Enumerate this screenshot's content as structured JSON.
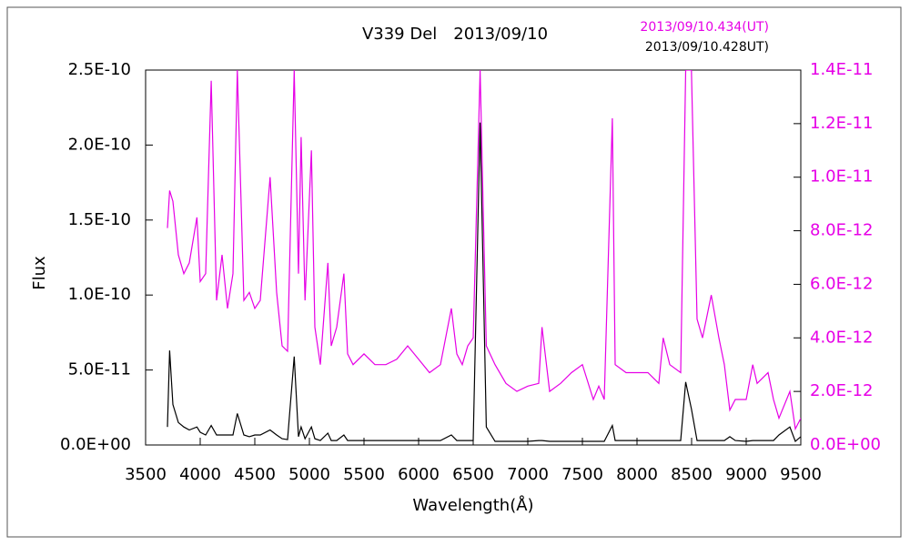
{
  "chart_data": {
    "type": "line",
    "title": "V339 Del　2013/09/10",
    "x_label": "Wavelength(Å)",
    "y_label": "Flux",
    "x": [
      3700,
      3720,
      3750,
      3800,
      3850,
      3900,
      3970,
      4000,
      4050,
      4101,
      4150,
      4200,
      4250,
      4300,
      4340,
      4400,
      4450,
      4500,
      4550,
      4640,
      4700,
      4750,
      4800,
      4861,
      4900,
      4924,
      4960,
      5018,
      5050,
      5100,
      5169,
      5200,
      5250,
      5316,
      5350,
      5400,
      5500,
      5600,
      5700,
      5800,
      5900,
      6000,
      6100,
      6200,
      6300,
      6350,
      6400,
      6450,
      6500,
      6563,
      6620,
      6700,
      6800,
      6900,
      7000,
      7100,
      7130,
      7200,
      7300,
      7400,
      7500,
      7600,
      7650,
      7700,
      7774,
      7800,
      7900,
      8000,
      8100,
      8200,
      8240,
      8300,
      8400,
      8446,
      8498,
      8550,
      8600,
      8680,
      8750,
      8800,
      8850,
      8900,
      9000,
      9060,
      9100,
      9200,
      9250,
      9300,
      9400,
      9450,
      9500
    ],
    "series": [
      {
        "name": "2013/09/10.434(UT)",
        "color": "#e600e6",
        "axis": "y2",
        "values": [
          8.1e-12,
          9.5e-12,
          9.1e-12,
          7.1e-12,
          6.4e-12,
          6.8e-12,
          8.5e-12,
          6.1e-12,
          6.4e-12,
          1.36e-11,
          5.4e-12,
          7.1e-12,
          5.1e-12,
          6.4e-12,
          1.4e-11,
          5.4e-12,
          5.7e-12,
          5.1e-12,
          5.4e-12,
          1e-11,
          5.7e-12,
          3.7e-12,
          3.5e-12,
          1.4e-11,
          6.4e-12,
          1.15e-11,
          5.4e-12,
          1.1e-11,
          4.4e-12,
          3e-12,
          6.8e-12,
          3.7e-12,
          4.4e-12,
          6.4e-12,
          3.4e-12,
          3e-12,
          3.4e-12,
          3e-12,
          3e-12,
          3.2e-12,
          3.7e-12,
          3.2e-12,
          2.7e-12,
          3e-12,
          5.1e-12,
          3.4e-12,
          3e-12,
          3.7e-12,
          4e-12,
          1.4e-11,
          3.7e-12,
          3e-12,
          2.3e-12,
          2e-12,
          2.2e-12,
          2.3e-12,
          4.4e-12,
          2e-12,
          2.3e-12,
          2.7e-12,
          3e-12,
          1.7e-12,
          2.2e-12,
          1.7e-12,
          1.22e-11,
          3e-12,
          2.7e-12,
          2.7e-12,
          2.7e-12,
          2.3e-12,
          4e-12,
          3e-12,
          2.7e-12,
          1.4e-11,
          1.4e-11,
          4.7e-12,
          4e-12,
          5.6e-12,
          4e-12,
          3e-12,
          1.3e-12,
          1.7e-12,
          1.7e-12,
          3e-12,
          2.3e-12,
          2.7e-12,
          1.7e-12,
          1e-12,
          2e-12,
          6e-13,
          1e-12
        ]
      },
      {
        "name": "2013/09/10.428UT)",
        "color": "#000000",
        "values": [
          1.2e-11,
          6.3e-11,
          2.7e-11,
          1.5e-11,
          1.2e-11,
          1e-11,
          1.2e-11,
          8.5e-12,
          6.7e-12,
          1.3e-11,
          6.7e-12,
          6.7e-12,
          6.7e-12,
          6.7e-12,
          2.1e-11,
          6.7e-12,
          5.5e-12,
          6.7e-12,
          6.7e-12,
          1e-11,
          6.7e-12,
          4.2e-12,
          3.6e-12,
          5.9e-11,
          5.5e-12,
          1.2e-11,
          4.2e-12,
          1.2e-11,
          4.2e-12,
          3e-12,
          7.9e-12,
          3e-12,
          3e-12,
          6.7e-12,
          3e-12,
          3e-12,
          3e-12,
          3e-12,
          3e-12,
          3e-12,
          3e-12,
          3e-12,
          3e-12,
          3e-12,
          6.7e-12,
          3e-12,
          3e-12,
          3e-12,
          3e-12,
          2.15e-10,
          1.2e-11,
          2.4e-12,
          2.4e-12,
          2.4e-12,
          2.4e-12,
          3e-12,
          3e-12,
          2.4e-12,
          2.4e-12,
          2.4e-12,
          2.4e-12,
          2.4e-12,
          2.4e-12,
          2.4e-12,
          1.3e-11,
          3e-12,
          3e-12,
          3e-12,
          3e-12,
          3e-12,
          3e-12,
          3e-12,
          3e-12,
          4.2e-11,
          2.4e-11,
          3e-12,
          3e-12,
          3e-12,
          3e-12,
          3e-12,
          5.5e-12,
          3e-12,
          2.4e-12,
          3e-12,
          3e-12,
          3e-12,
          3e-12,
          6.7e-12,
          1.2e-11,
          2.4e-12,
          5.5e-12
        ]
      }
    ],
    "xlim": [
      3500,
      9500
    ],
    "xticks": [
      3500,
      4000,
      4500,
      5000,
      5500,
      6000,
      6500,
      7000,
      7500,
      8000,
      8500,
      9000,
      9500
    ],
    "ylim": [
      0,
      2.5e-10
    ],
    "yticks": [
      {
        "value": 0,
        "label": "0.0E+00"
      },
      {
        "value": 5e-11,
        "label": "5.0E-11"
      },
      {
        "value": 1e-10,
        "label": "1.0E-10"
      },
      {
        "value": 1.5e-10,
        "label": "1.5E-10"
      },
      {
        "value": 2e-10,
        "label": "2.0E-10"
      },
      {
        "value": 2.5e-10,
        "label": "2.5E-10"
      }
    ],
    "y2lim": [
      0,
      1.4e-11
    ],
    "y2ticks": [
      {
        "value": 0,
        "label": "0.0E+00"
      },
      {
        "value": 2e-12,
        "label": "2.0E-12"
      },
      {
        "value": 4e-12,
        "label": "4.0E-12"
      },
      {
        "value": 6e-12,
        "label": "6.0E-12"
      },
      {
        "value": 8e-12,
        "label": "8.0E-12"
      },
      {
        "value": 1e-11,
        "label": "1.0E-11"
      },
      {
        "value": 1.2e-11,
        "label": "1.2E-11"
      },
      {
        "value": 1.4e-11,
        "label": "1.4E-11"
      }
    ],
    "legend": "upper right"
  }
}
